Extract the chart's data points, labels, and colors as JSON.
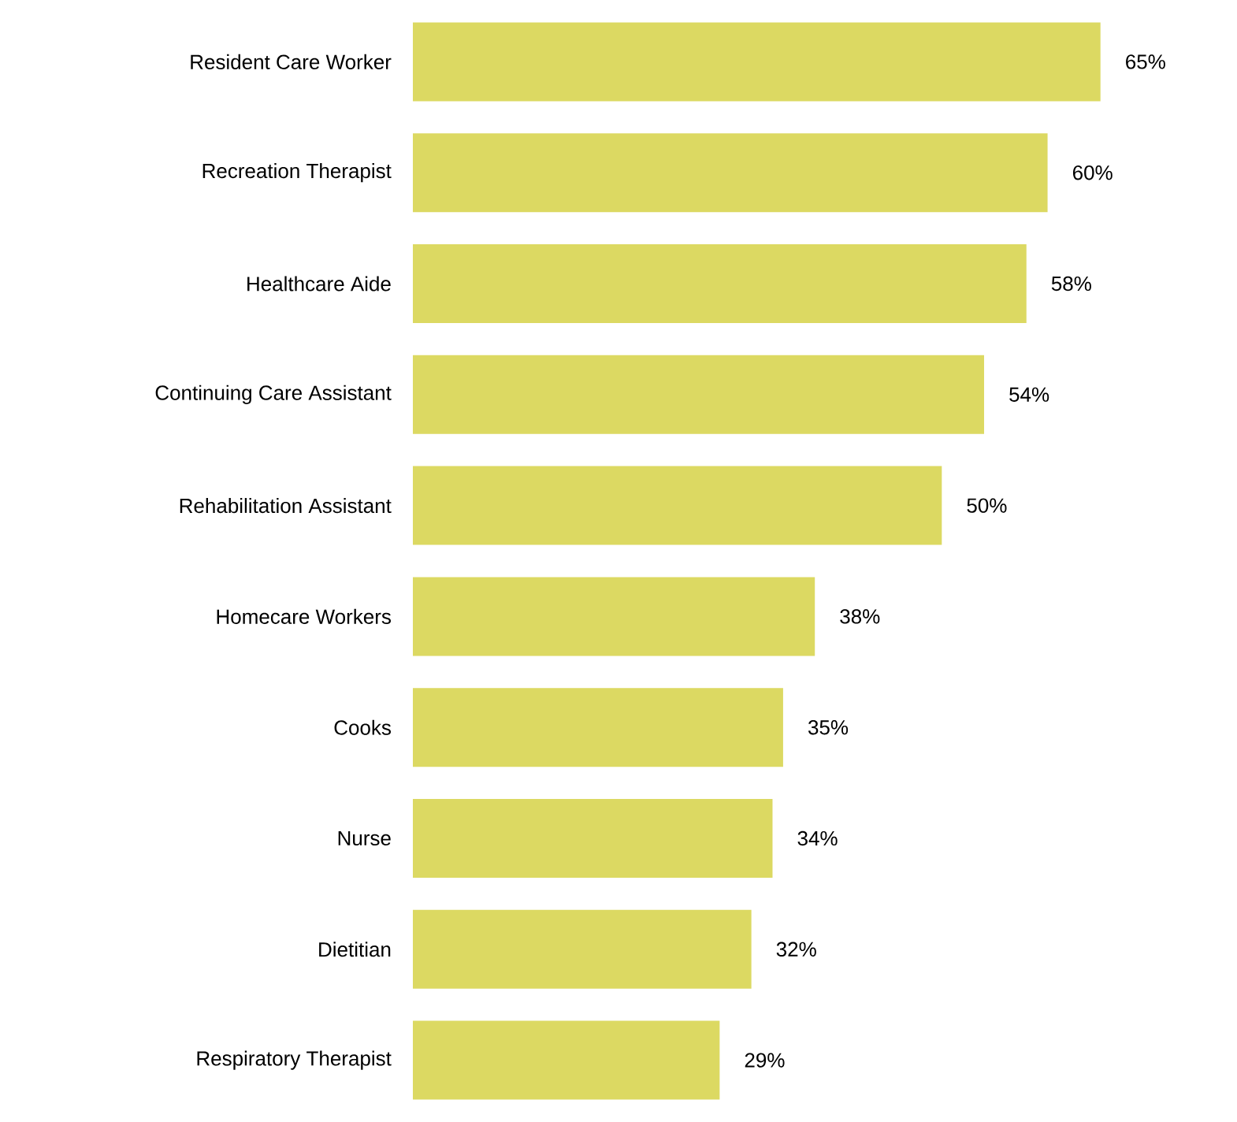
{
  "chart_data": {
    "type": "bar",
    "orientation": "horizontal",
    "categories": [
      "Resident Care Worker",
      "Recreation Therapist",
      "Healthcare Aide",
      "Continuing Care Assistant",
      "Rehabilitation Assistant",
      "Homecare Workers",
      "Cooks",
      "Nurse",
      "Dietitian",
      "Respiratory Therapist"
    ],
    "values": [
      65,
      60,
      58,
      54,
      50,
      38,
      35,
      34,
      32,
      29
    ],
    "value_labels": [
      "65%",
      "60%",
      "58%",
      "54%",
      "50%",
      "38%",
      "35%",
      "34%",
      "32%",
      "29%"
    ],
    "color": "#dcd962",
    "tick_labels": "y"
  }
}
